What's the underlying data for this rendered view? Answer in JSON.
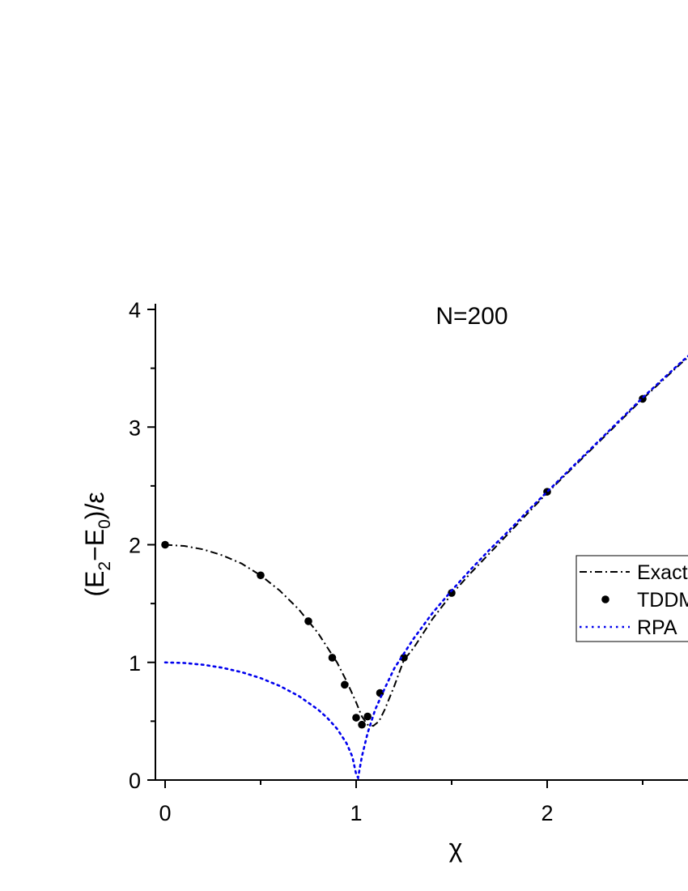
{
  "chart_data": {
    "type": "line",
    "title": "N=200",
    "xlabel": "χ",
    "ylabel": {
      "open": "(E",
      "sub1": "2",
      "mid": "−E",
      "sub2": "0",
      "close": ")/ε"
    },
    "xlim": [
      -0.05,
      2.75
    ],
    "ylim": [
      0,
      4
    ],
    "x_ticks": [
      0,
      1,
      2
    ],
    "x_minor_ticks": [
      0.5,
      1.5,
      2.5
    ],
    "y_ticks": [
      0,
      1,
      2,
      3,
      4
    ],
    "y_minor_ticks": [
      0.5,
      1.5,
      2.5,
      3.5
    ],
    "legend": {
      "placement": "right",
      "entries": [
        "Exact",
        "TDDM",
        "RPA"
      ]
    },
    "series": [
      {
        "name": "Exact",
        "style": "dash-dot",
        "color": "#000000",
        "points": [
          [
            0,
            2.0
          ],
          [
            0.1,
            1.99
          ],
          [
            0.2,
            1.96
          ],
          [
            0.3,
            1.91
          ],
          [
            0.4,
            1.84
          ],
          [
            0.5,
            1.74
          ],
          [
            0.6,
            1.61
          ],
          [
            0.7,
            1.45
          ],
          [
            0.8,
            1.25
          ],
          [
            0.9,
            1.0
          ],
          [
            0.95,
            0.84
          ],
          [
            1.0,
            0.66
          ],
          [
            1.03,
            0.54
          ],
          [
            1.06,
            0.47
          ],
          [
            1.09,
            0.46
          ],
          [
            1.12,
            0.5
          ],
          [
            1.15,
            0.6
          ],
          [
            1.2,
            0.8
          ],
          [
            1.25,
            1.02
          ],
          [
            1.3,
            1.12
          ],
          [
            1.4,
            1.37
          ],
          [
            1.5,
            1.58
          ],
          [
            1.6,
            1.76
          ],
          [
            1.7,
            1.93
          ],
          [
            1.8,
            2.1
          ],
          [
            1.9,
            2.27
          ],
          [
            2.0,
            2.44
          ],
          [
            2.1,
            2.6
          ],
          [
            2.2,
            2.76
          ],
          [
            2.3,
            2.92
          ],
          [
            2.4,
            3.08
          ],
          [
            2.5,
            3.24
          ],
          [
            2.6,
            3.39
          ],
          [
            2.7,
            3.54
          ],
          [
            2.75,
            3.61
          ]
        ]
      },
      {
        "name": "TDDM",
        "style": "markers",
        "color": "#000000",
        "points": [
          [
            0,
            2.0
          ],
          [
            0.5,
            1.74
          ],
          [
            0.75,
            1.35
          ],
          [
            0.875,
            1.04
          ],
          [
            0.94,
            0.81
          ],
          [
            1.0,
            0.53
          ],
          [
            1.03,
            0.47
          ],
          [
            1.06,
            0.54
          ],
          [
            1.125,
            0.74
          ],
          [
            1.25,
            1.04
          ],
          [
            1.5,
            1.59
          ],
          [
            2.0,
            2.45
          ],
          [
            2.5,
            3.24
          ]
        ]
      },
      {
        "name": "RPA",
        "style": "dotted",
        "color": "#0000ee",
        "points": [
          [
            0,
            1.0
          ],
          [
            0.1,
            0.995
          ],
          [
            0.2,
            0.98
          ],
          [
            0.3,
            0.954
          ],
          [
            0.4,
            0.917
          ],
          [
            0.5,
            0.866
          ],
          [
            0.6,
            0.8
          ],
          [
            0.7,
            0.714
          ],
          [
            0.8,
            0.6
          ],
          [
            0.85,
            0.527
          ],
          [
            0.9,
            0.436
          ],
          [
            0.95,
            0.312
          ],
          [
            0.98,
            0.199
          ],
          [
            1.0,
            0.05
          ],
          [
            1.01,
            0.02
          ],
          [
            1.03,
            0.2
          ],
          [
            1.06,
            0.4
          ],
          [
            1.1,
            0.6
          ],
          [
            1.15,
            0.78
          ],
          [
            1.2,
            0.95
          ],
          [
            1.3,
            1.2
          ],
          [
            1.4,
            1.42
          ],
          [
            1.5,
            1.61
          ],
          [
            1.6,
            1.79
          ],
          [
            1.7,
            1.96
          ],
          [
            1.8,
            2.12
          ],
          [
            1.9,
            2.29
          ],
          [
            2.0,
            2.45
          ],
          [
            2.1,
            2.61
          ],
          [
            2.2,
            2.77
          ],
          [
            2.3,
            2.93
          ],
          [
            2.4,
            3.09
          ],
          [
            2.5,
            3.25
          ],
          [
            2.6,
            3.4
          ],
          [
            2.7,
            3.55
          ],
          [
            2.75,
            3.62
          ]
        ]
      }
    ]
  }
}
